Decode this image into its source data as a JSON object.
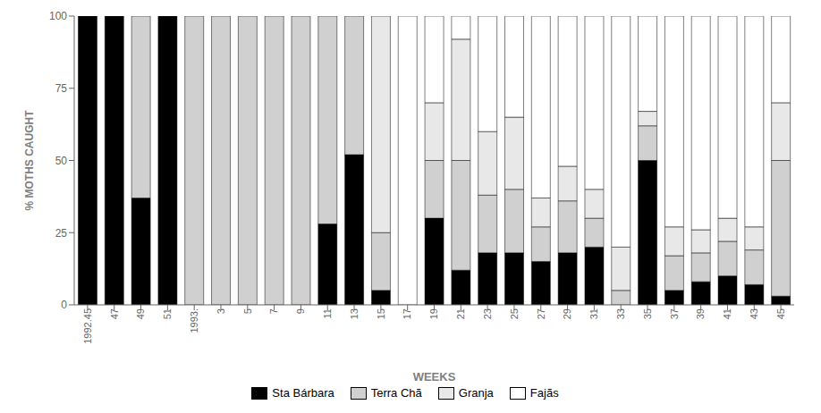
{
  "chart_data": {
    "type": "bar",
    "stacked": true,
    "xlabel": "WEEKS",
    "ylabel": "% MOTHS CAUGHT",
    "categories": [
      "1992.45",
      "47",
      "49",
      "51",
      "1993.",
      "3",
      "5",
      "7",
      "9",
      "11",
      "13",
      "15",
      "17",
      "19",
      "21",
      "23",
      "25",
      "27",
      "29",
      "31",
      "33",
      "35",
      "37",
      "39",
      "41",
      "43",
      "45"
    ],
    "series": [
      {
        "name": "Sta Bárbara",
        "color": "#000000",
        "values": [
          100,
          100,
          37,
          100,
          0,
          0,
          0,
          0,
          0,
          28,
          52,
          5,
          0,
          30,
          12,
          18,
          18,
          15,
          18,
          20,
          0,
          50,
          5,
          8,
          10,
          7,
          3
        ]
      },
      {
        "name": "Terra Chã",
        "color": "#d0d0d0",
        "values": [
          0,
          0,
          63,
          0,
          100,
          100,
          100,
          100,
          100,
          72,
          48,
          20,
          0,
          20,
          38,
          20,
          22,
          12,
          18,
          10,
          5,
          12,
          12,
          10,
          12,
          12,
          47
        ]
      },
      {
        "name": "Granja",
        "color": "#e8e8e8",
        "values": [
          0,
          0,
          0,
          0,
          0,
          0,
          0,
          0,
          0,
          0,
          0,
          75,
          0,
          20,
          42,
          22,
          25,
          10,
          12,
          10,
          15,
          5,
          10,
          8,
          8,
          8,
          20
        ]
      },
      {
        "name": "Fajãs",
        "color": "#ffffff",
        "values": [
          0,
          0,
          0,
          0,
          0,
          0,
          0,
          0,
          0,
          0,
          0,
          0,
          100,
          30,
          8,
          40,
          35,
          63,
          52,
          60,
          80,
          33,
          73,
          74,
          70,
          73,
          30
        ]
      }
    ],
    "ylim": [
      0,
      100
    ],
    "yticks": [
      0,
      25,
      50,
      75,
      100
    ],
    "grid": false,
    "legend": "bottom"
  }
}
